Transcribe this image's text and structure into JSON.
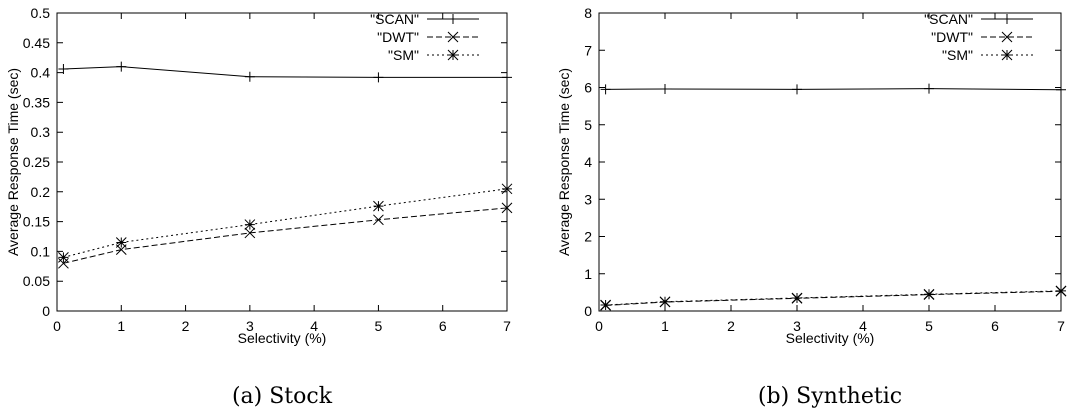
{
  "chart_data": [
    {
      "type": "line",
      "caption": "(a) Stock",
      "xlabel": "Selectivity (%)",
      "ylabel": "Average Response Time (sec)",
      "xlim": [
        0,
        7
      ],
      "ylim": [
        0,
        0.5
      ],
      "x_ticks": [
        "0",
        "1",
        "2",
        "3",
        "4",
        "5",
        "6",
        "7"
      ],
      "y_ticks": [
        "0",
        "0.05",
        "0.1",
        "0.15",
        "0.2",
        "0.25",
        "0.3",
        "0.35",
        "0.4",
        "0.45",
        "0.5"
      ],
      "grid": false,
      "legend_position": "top-right",
      "series": [
        {
          "name": "\"SCAN\"",
          "marker": "plus",
          "dash": "solid",
          "x": [
            0.1,
            1,
            3,
            5,
            7
          ],
          "values": [
            0.406,
            0.41,
            0.393,
            0.392,
            0.392
          ]
        },
        {
          "name": "\"DWT\"",
          "marker": "cross",
          "dash": "dashed",
          "x": [
            0.1,
            1,
            3,
            5,
            7
          ],
          "values": [
            0.08,
            0.103,
            0.131,
            0.153,
            0.173
          ]
        },
        {
          "name": "\"SM\"",
          "marker": "star",
          "dash": "dotted",
          "x": [
            0.1,
            1,
            3,
            5,
            7
          ],
          "values": [
            0.09,
            0.115,
            0.145,
            0.176,
            0.205
          ]
        }
      ]
    },
    {
      "type": "line",
      "caption": "(b) Synthetic",
      "xlabel": "Selectivity (%)",
      "ylabel": "Average Response Time (sec)",
      "xlim": [
        0,
        7
      ],
      "ylim": [
        0,
        8
      ],
      "x_ticks": [
        "0",
        "1",
        "2",
        "3",
        "4",
        "5",
        "6",
        "7"
      ],
      "y_ticks": [
        "0",
        "1",
        "2",
        "3",
        "4",
        "5",
        "6",
        "7",
        "8"
      ],
      "grid": false,
      "legend_position": "top-right",
      "series": [
        {
          "name": "\"SCAN\"",
          "marker": "plus",
          "dash": "solid",
          "x": [
            0.1,
            1,
            3,
            5,
            7
          ],
          "values": [
            5.95,
            5.96,
            5.95,
            5.97,
            5.94
          ]
        },
        {
          "name": "\"DWT\"",
          "marker": "cross",
          "dash": "dashed",
          "x": [
            0.1,
            1,
            3,
            5,
            7
          ],
          "values": [
            0.15,
            0.24,
            0.34,
            0.44,
            0.53
          ]
        },
        {
          "name": "\"SM\"",
          "marker": "star",
          "dash": "dotted",
          "x": [
            0.1,
            1,
            3,
            5,
            7
          ],
          "values": [
            0.16,
            0.25,
            0.35,
            0.45,
            0.54
          ]
        }
      ]
    }
  ]
}
